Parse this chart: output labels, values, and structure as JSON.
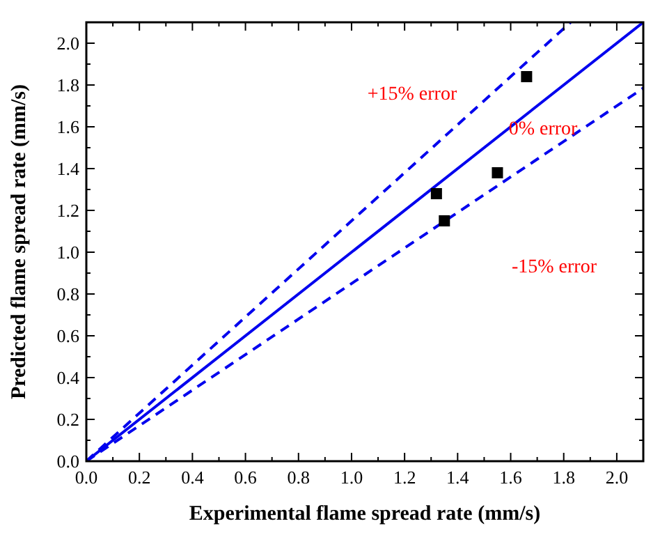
{
  "chart_data": {
    "type": "scatter",
    "xlabel": "Experimental flame spread rate (mm/s)",
    "ylabel": "Predicted flame spread rate (mm/s)",
    "xlim": [
      0,
      2.1
    ],
    "ylim": [
      0,
      2.1
    ],
    "xticks": [
      {
        "value": 0,
        "label": "0.0"
      },
      {
        "value": 0.1,
        "label": null
      },
      {
        "value": 0.2,
        "label": "0.2"
      },
      {
        "value": 0.3,
        "label": null
      },
      {
        "value": 0.4,
        "label": "0.4"
      },
      {
        "value": 0.5,
        "label": null
      },
      {
        "value": 0.6,
        "label": "0.6"
      },
      {
        "value": 0.7,
        "label": null
      },
      {
        "value": 0.8,
        "label": "0.8"
      },
      {
        "value": 0.9,
        "label": null
      },
      {
        "value": 1,
        "label": "1.0"
      },
      {
        "value": 1.1,
        "label": null
      },
      {
        "value": 1.2,
        "label": "1.2"
      },
      {
        "value": 1.3,
        "label": null
      },
      {
        "value": 1.4,
        "label": "1.4"
      },
      {
        "value": 1.5,
        "label": null
      },
      {
        "value": 1.6,
        "label": "1.6"
      },
      {
        "value": 1.7,
        "label": null
      },
      {
        "value": 1.8,
        "label": "1.8"
      },
      {
        "value": 1.9,
        "label": null
      },
      {
        "value": 2,
        "label": "2.0"
      }
    ],
    "yticks": [
      {
        "value": 0,
        "label": "0.0"
      },
      {
        "value": 0.1,
        "label": null
      },
      {
        "value": 0.2,
        "label": "0.2"
      },
      {
        "value": 0.3,
        "label": null
      },
      {
        "value": 0.4,
        "label": "0.4"
      },
      {
        "value": 0.5,
        "label": null
      },
      {
        "value": 0.6,
        "label": "0.6"
      },
      {
        "value": 0.7,
        "label": null
      },
      {
        "value": 0.8,
        "label": "0.8"
      },
      {
        "value": 0.9,
        "label": null
      },
      {
        "value": 1,
        "label": "1.0"
      },
      {
        "value": 1.1,
        "label": null
      },
      {
        "value": 1.2,
        "label": "1.2"
      },
      {
        "value": 1.3,
        "label": null
      },
      {
        "value": 1.4,
        "label": "1.4"
      },
      {
        "value": 1.5,
        "label": null
      },
      {
        "value": 1.6,
        "label": "1.6"
      },
      {
        "value": 1.7,
        "label": null
      },
      {
        "value": 1.8,
        "label": "1.8"
      },
      {
        "value": 1.9,
        "label": null
      },
      {
        "value": 2,
        "label": "2.0"
      }
    ],
    "series": [
      {
        "type": "line",
        "color": "#0000ee",
        "line_style": "solid",
        "marker": "none",
        "x": [
          0,
          2.1
        ],
        "values": [
          0,
          2.1
        ]
      },
      {
        "type": "line",
        "color": "#0000ee",
        "line_style": "dashed",
        "marker": "none",
        "x": [
          0,
          1.826
        ],
        "values": [
          0,
          2.1
        ]
      },
      {
        "type": "line",
        "color": "#0000ee",
        "line_style": "dashed",
        "marker": "none",
        "x": [
          0,
          2.1
        ],
        "values": [
          0,
          1.785
        ]
      },
      {
        "color": "#000000",
        "marker": "square",
        "x": [
          1.32,
          1.35,
          1.55,
          1.66
        ],
        "values": [
          1.28,
          1.15,
          1.38,
          1.84
        ]
      }
    ],
    "annotations": [
      "+15% error",
      "0% error",
      "-15% error"
    ]
  }
}
